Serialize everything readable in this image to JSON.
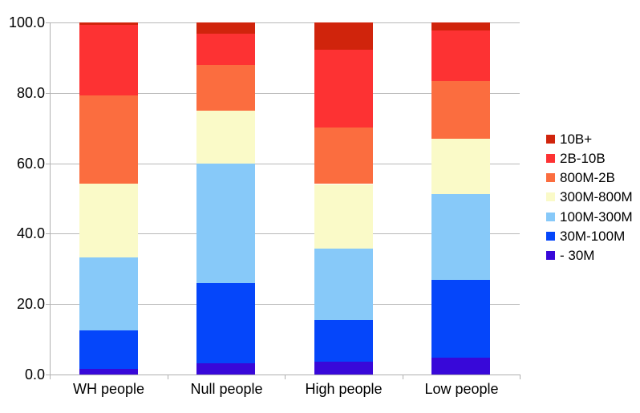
{
  "chart_data": {
    "type": "bar",
    "variant": "stacked-percent",
    "title": "",
    "xlabel": "",
    "ylabel": "",
    "ylim": [
      0,
      100
    ],
    "grid": true,
    "legend_position": "right",
    "yticks": [
      {
        "value": 100,
        "label": "100.0"
      },
      {
        "value": 80,
        "label": "80.0"
      },
      {
        "value": 60,
        "label": "60.0"
      },
      {
        "value": 40,
        "label": "40.0"
      },
      {
        "value": 20,
        "label": "20.0"
      },
      {
        "value": 0,
        "label": "0.0"
      }
    ],
    "categories": [
      "WH people",
      "Null people",
      "High people",
      "Low people"
    ],
    "series": [
      {
        "name": "- 30M",
        "color": "#3808d9",
        "values": [
          1.7,
          3.1,
          3.7,
          4.7
        ]
      },
      {
        "name": "30M-100M",
        "color": "#0546fa",
        "values": [
          10.8,
          22.9,
          11.7,
          22.1
        ]
      },
      {
        "name": "100M-300M",
        "color": "#87c9f9",
        "values": [
          20.7,
          34.0,
          20.4,
          24.5
        ]
      },
      {
        "name": "300M-800M",
        "color": "#fafac8",
        "values": [
          21.0,
          15.0,
          18.3,
          15.6
        ]
      },
      {
        "name": "800M-2B",
        "color": "#fb6d3f",
        "values": [
          25.0,
          13.0,
          16.1,
          16.4
        ]
      },
      {
        "name": "2B-10B",
        "color": "#fd3233",
        "values": [
          20.1,
          8.8,
          22.1,
          14.4
        ]
      },
      {
        "name": "10B+",
        "color": "#d0240c",
        "values": [
          0.7,
          3.2,
          7.7,
          2.3
        ]
      }
    ],
    "legend": {
      "entries": [
        {
          "label": "10B+",
          "color": "#d0240c"
        },
        {
          "label": "2B-10B",
          "color": "#fd3233"
        },
        {
          "label": "800M-2B",
          "color": "#fb6d3f"
        },
        {
          "label": "300M-800M",
          "color": "#fafac8"
        },
        {
          "label": "100M-300M",
          "color": "#87c9f9"
        },
        {
          "label": "30M-100M",
          "color": "#0546fa"
        },
        {
          "label": "- 30M",
          "color": "#3808d9"
        }
      ]
    }
  },
  "colors": {
    "background": "#ffffff",
    "gridline": "#b9b9b9",
    "axis": "#b0b0b0",
    "text": "#000000"
  }
}
